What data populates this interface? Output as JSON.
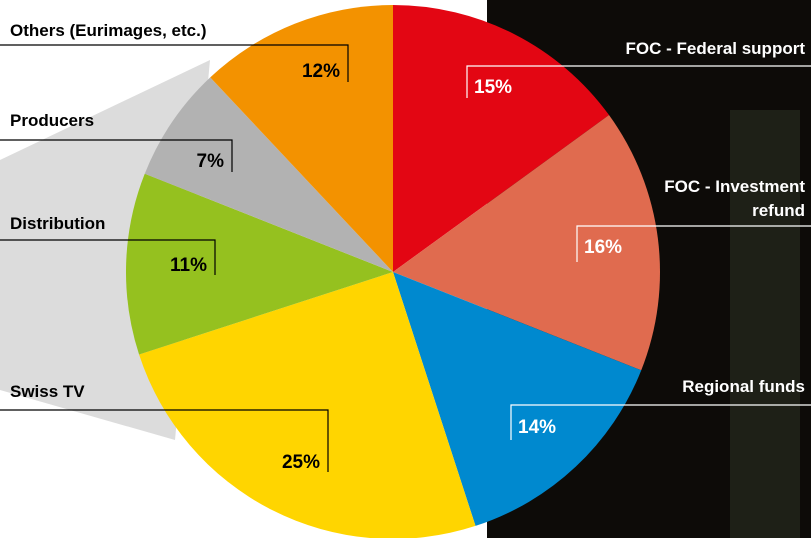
{
  "chart_data": {
    "type": "pie",
    "categories": [
      "FOC - Federal support",
      "FOC - Investment refund",
      "Regional funds",
      "Swiss TV",
      "Distribution",
      "Producers",
      "Others (Eurimages, etc.)"
    ],
    "values": [
      15,
      16,
      14,
      25,
      11,
      7,
      12
    ],
    "value_labels": [
      "15%",
      "16%",
      "14%",
      "25%",
      "11%",
      "7%",
      "12%"
    ],
    "colors": [
      "#e30613",
      "#e06b4f",
      "#0089cf",
      "#ffd500",
      "#95c11f",
      "#b2b2b2",
      "#f39200"
    ]
  }
}
